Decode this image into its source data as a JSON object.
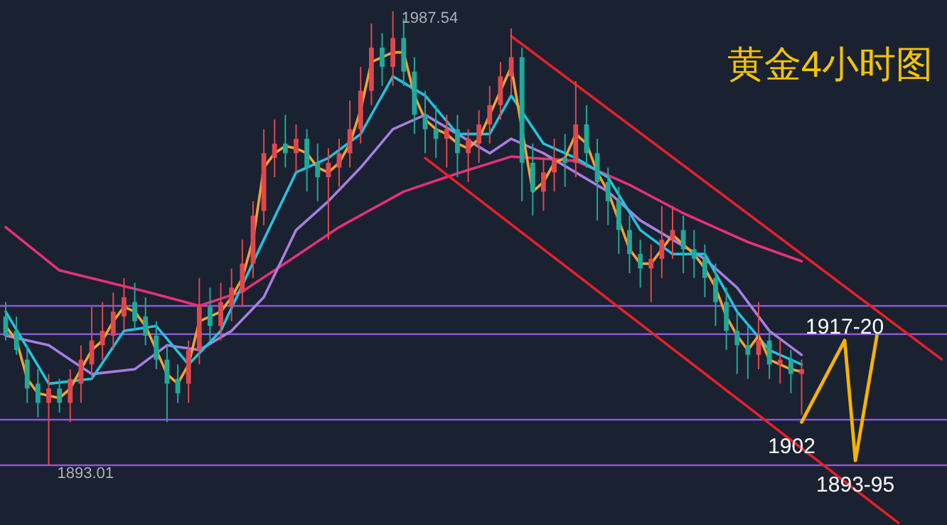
{
  "chart_data": {
    "type": "candlestick",
    "title": "黄金4小时图",
    "tick_labels": false,
    "categories": [
      null,
      null,
      null,
      null,
      null,
      null,
      null,
      null,
      null,
      null,
      null,
      null,
      null,
      null,
      null,
      null,
      null,
      null,
      null,
      null,
      null,
      null,
      null,
      null,
      null,
      null,
      null,
      null,
      null,
      null,
      null,
      null,
      null,
      null,
      null,
      null,
      null,
      null,
      null,
      null,
      null,
      null,
      null,
      null,
      null,
      null,
      null,
      null,
      null,
      null,
      null,
      null,
      null,
      null,
      null,
      null,
      null,
      null,
      null,
      null,
      null,
      null,
      null,
      null,
      null,
      null,
      null,
      null,
      null,
      null,
      null,
      null,
      null,
      null,
      null,
      null,
      null,
      null,
      null,
      null,
      null,
      null,
      null,
      null,
      null,
      null,
      null,
      null
    ],
    "ohlc": [
      [
        1924,
        1927,
        1919,
        1920
      ],
      [
        1921,
        1924,
        1916,
        1917
      ],
      [
        1915,
        1918,
        1906,
        1909
      ],
      [
        1910,
        1913,
        1903,
        1906
      ],
      [
        1906,
        1912,
        1893.01,
        1909
      ],
      [
        1909,
        1911,
        1904,
        1906
      ],
      [
        1906,
        1913,
        1902,
        1911
      ],
      [
        1910,
        1918,
        1906,
        1915
      ],
      [
        1914,
        1926,
        1911,
        1919
      ],
      [
        1918,
        1927,
        1915,
        1921
      ],
      [
        1920,
        1929,
        1917,
        1925
      ],
      [
        1924,
        1932,
        1921,
        1928
      ],
      [
        1927,
        1931,
        1921,
        1923
      ],
      [
        1924,
        1928,
        1918,
        1920
      ],
      [
        1920,
        1923,
        1913,
        1915
      ],
      [
        1915,
        1918,
        1902,
        1910
      ],
      [
        1911,
        1914,
        1906,
        1908
      ],
      [
        1910,
        1919,
        1906,
        1917
      ],
      [
        1917,
        1932,
        1914,
        1926
      ],
      [
        1926,
        1930,
        1919,
        1922
      ],
      [
        1922,
        1931,
        1919,
        1927
      ],
      [
        1926,
        1934,
        1923,
        1930
      ],
      [
        1929,
        1940,
        1926,
        1935
      ],
      [
        1935,
        1948,
        1932,
        1945
      ],
      [
        1946,
        1963,
        1943,
        1958
      ],
      [
        1957,
        1965,
        1953,
        1960
      ],
      [
        1960,
        1966,
        1955,
        1958
      ],
      [
        1958,
        1964,
        1954,
        1961
      ],
      [
        1961,
        1963,
        1950,
        1955
      ],
      [
        1956,
        1960,
        1948,
        1953
      ],
      [
        1953,
        1959,
        1940,
        1956
      ],
      [
        1955,
        1961,
        1951,
        1958
      ],
      [
        1958,
        1969,
        1955,
        1963
      ],
      [
        1963,
        1976,
        1960,
        1971
      ],
      [
        1971,
        1985,
        1968,
        1980
      ],
      [
        1980,
        1983,
        1972,
        1976
      ],
      [
        1976,
        1987.54,
        1972,
        1982
      ],
      [
        1982,
        1986,
        1972,
        1975
      ],
      [
        1975,
        1978,
        1962,
        1966
      ],
      [
        1966,
        1971,
        1958,
        1963
      ],
      [
        1963,
        1968,
        1957,
        1961
      ],
      [
        1961,
        1966,
        1955,
        1963
      ],
      [
        1963,
        1966,
        1953,
        1958
      ],
      [
        1958,
        1963,
        1952,
        1961
      ],
      [
        1960,
        1967,
        1956,
        1964
      ],
      [
        1964,
        1972,
        1960,
        1968
      ],
      [
        1968,
        1977,
        1965,
        1974
      ],
      [
        1974,
        1984,
        1970,
        1978
      ],
      [
        1978,
        1980,
        1948,
        1956
      ],
      [
        1956,
        1960,
        1945,
        1950
      ],
      [
        1950,
        1957,
        1946,
        1954
      ],
      [
        1954,
        1961,
        1950,
        1957
      ],
      [
        1957,
        1962,
        1951,
        1956
      ],
      [
        1956,
        1973,
        1953,
        1964
      ],
      [
        1964,
        1968,
        1955,
        1958
      ],
      [
        1958,
        1961,
        1944,
        1952
      ],
      [
        1952,
        1955,
        1943,
        1948
      ],
      [
        1948,
        1951,
        1937,
        1942
      ],
      [
        1942,
        1945,
        1933,
        1937
      ],
      [
        1937,
        1940,
        1930,
        1934
      ],
      [
        1934,
        1939,
        1927,
        1936
      ],
      [
        1936,
        1947,
        1932,
        1940
      ],
      [
        1940,
        1947,
        1936,
        1942
      ],
      [
        1942,
        1945,
        1933,
        1938
      ],
      [
        1938,
        1942,
        1932,
        1936
      ],
      [
        1936,
        1939,
        1928,
        1932
      ],
      [
        1932,
        1935,
        1922,
        1927
      ],
      [
        1927,
        1930,
        1917,
        1921
      ],
      [
        1921,
        1925,
        1912,
        1918
      ],
      [
        1918,
        1922,
        1911,
        1916
      ],
      [
        1916,
        1927,
        1913,
        1919
      ],
      [
        1919,
        1921,
        1911,
        1914
      ],
      [
        1914,
        1919,
        1910,
        1915
      ],
      [
        1915,
        1917,
        1908,
        1912
      ],
      [
        1912,
        1915,
        1903.5,
        1913
      ],
      null,
      null,
      null,
      null,
      null,
      null,
      null,
      null,
      null,
      null,
      null,
      null,
      null
    ],
    "series": [
      {
        "type": "line",
        "color": "#e8307a",
        "values": [
          1942.6,
          null,
          null,
          null,
          null,
          1933.6,
          null,
          null,
          null,
          null,
          null,
          null,
          null,
          1929.2,
          null,
          null,
          null,
          null,
          1926.2,
          null,
          null,
          null,
          1929.2,
          null,
          null,
          null,
          1935.1,
          null,
          null,
          null,
          null,
          1942.6,
          null,
          null,
          null,
          null,
          null,
          1950,
          null,
          null,
          null,
          null,
          1953.8,
          null,
          null,
          null,
          null,
          1957.3,
          null,
          null,
          null,
          null,
          null,
          1956.4,
          null,
          null,
          null,
          null,
          1951.4,
          null,
          null,
          null,
          null,
          1945.5,
          null,
          null,
          null,
          null,
          null,
          1939.5,
          null,
          null,
          null,
          null,
          1935.5,
          null,
          null,
          null,
          null,
          null,
          null,
          null,
          null,
          null,
          null,
          null,
          null,
          null
        ]
      },
      {
        "type": "line",
        "color": "#a77fe0",
        "values": [
          1920,
          null,
          null,
          null,
          1918,
          null,
          null,
          null,
          1912,
          null,
          null,
          null,
          1913,
          null,
          null,
          1918,
          null,
          null,
          1917,
          null,
          null,
          1921,
          null,
          null,
          1928,
          null,
          null,
          1942,
          null,
          null,
          1948,
          null,
          null,
          1955,
          null,
          null,
          1963,
          null,
          null,
          1966,
          null,
          null,
          1962,
          null,
          null,
          1958,
          null,
          1961,
          null,
          null,
          1958,
          null,
          null,
          1954,
          null,
          null,
          1950,
          null,
          null,
          1944,
          null,
          null,
          1940,
          null,
          null,
          1936,
          null,
          null,
          1930,
          null,
          null,
          1921,
          null,
          null,
          1916,
          null,
          null,
          null,
          null,
          null,
          null,
          null,
          null,
          null,
          null,
          null,
          null,
          null
        ]
      },
      {
        "type": "line",
        "color": "#22c3de",
        "values": [
          1925,
          null,
          null,
          null,
          1910,
          null,
          null,
          null,
          1911,
          null,
          null,
          1921,
          null,
          null,
          1922,
          null,
          null,
          1914,
          null,
          null,
          1921,
          null,
          null,
          null,
          1940,
          null,
          null,
          1954,
          null,
          null,
          1957,
          null,
          null,
          1962,
          null,
          null,
          1974,
          null,
          null,
          1970,
          null,
          null,
          1962,
          null,
          null,
          1962,
          null,
          1970,
          null,
          null,
          1960,
          null,
          null,
          1957,
          null,
          null,
          1953,
          null,
          null,
          1942,
          null,
          null,
          1937,
          null,
          null,
          1937,
          null,
          null,
          1925,
          null,
          null,
          1917,
          null,
          null,
          1914,
          null,
          null,
          null,
          null,
          null,
          null,
          null,
          null,
          null,
          null,
          null,
          null,
          null
        ]
      },
      {
        "type": "line",
        "color": "#f7a133",
        "values": [
          1922,
          1919,
          1911,
          1908,
          1907.5,
          1907,
          1909,
          1913,
          1917,
          1919,
          1923,
          1926,
          1925,
          1922,
          1917,
          1912,
          1910,
          1914,
          1923,
          1924,
          1925,
          1928,
          1932,
          1940,
          1955,
          1958,
          1959.5,
          1959,
          1958,
          1955,
          1954,
          1956,
          1960,
          1967,
          1977,
          1978,
          1979,
          1979,
          1970,
          1965,
          1963,
          1962,
          1960,
          1959,
          1961,
          1966,
          1971,
          1976,
          null,
          1950,
          1952,
          1956,
          1957,
          1962,
          1960,
          1954,
          1950,
          1944,
          1938,
          1935,
          1935,
          1938,
          1941,
          1939,
          1937,
          1934,
          1930,
          1924,
          1920,
          1917,
          1920,
          1915,
          1914,
          1913,
          1912.5,
          null,
          null,
          null,
          null,
          null,
          null,
          null,
          null,
          null,
          null,
          null,
          null,
          null
        ]
      },
      {
        "type": "line",
        "color": "#e8202a",
        "values": [
          null,
          null,
          null,
          null,
          null,
          null,
          null,
          null,
          null,
          null,
          null,
          null,
          null,
          null,
          null,
          null,
          null,
          null,
          null,
          null,
          null,
          null,
          null,
          null,
          null,
          null,
          null,
          null,
          null,
          null,
          null,
          null,
          null,
          null,
          null,
          null,
          null,
          null,
          null,
          null,
          null,
          null,
          null,
          null,
          null,
          null,
          null,
          1982.4,
          null,
          null,
          null,
          null,
          null,
          null,
          null,
          null,
          null,
          null,
          null,
          null,
          null,
          null,
          null,
          null,
          null,
          null,
          null,
          null,
          null,
          null,
          null,
          null,
          null,
          null,
          null,
          null,
          null,
          null,
          null,
          null,
          null,
          null,
          null,
          null,
          null,
          null,
          null,
          1915.1
        ]
      },
      {
        "type": "line",
        "color": "#e8202a",
        "values": [
          null,
          null,
          null,
          null,
          null,
          null,
          null,
          null,
          null,
          null,
          null,
          null,
          null,
          null,
          null,
          null,
          null,
          null,
          null,
          null,
          null,
          null,
          null,
          null,
          null,
          null,
          null,
          null,
          null,
          null,
          null,
          null,
          null,
          null,
          null,
          null,
          null,
          null,
          null,
          1957,
          null,
          null,
          null,
          null,
          null,
          null,
          null,
          null,
          null,
          null,
          null,
          null,
          null,
          null,
          null,
          null,
          null,
          null,
          null,
          null,
          null,
          null,
          null,
          null,
          null,
          null,
          null,
          null,
          null,
          null,
          null,
          null,
          null,
          null,
          null,
          null,
          null,
          null,
          null,
          null,
          null,
          null,
          null,
          1881,
          null,
          null,
          null,
          null
        ]
      },
      {
        "type": "line",
        "color": "#f5b400",
        "values": [
          null,
          null,
          null,
          null,
          null,
          null,
          null,
          null,
          null,
          null,
          null,
          null,
          null,
          null,
          null,
          null,
          null,
          null,
          null,
          null,
          null,
          null,
          null,
          null,
          null,
          null,
          null,
          null,
          null,
          null,
          null,
          null,
          null,
          null,
          null,
          null,
          null,
          null,
          null,
          null,
          null,
          null,
          null,
          null,
          null,
          null,
          null,
          null,
          null,
          null,
          null,
          null,
          null,
          null,
          null,
          null,
          null,
          null,
          null,
          null,
          null,
          null,
          null,
          null,
          null,
          null,
          null,
          null,
          null,
          null,
          null,
          null,
          null,
          null,
          1902,
          null,
          null,
          null,
          1919,
          1894,
          null,
          1920,
          null,
          null,
          null,
          null,
          null,
          null
        ]
      }
    ],
    "ref_lines": [
      {
        "axis": "y",
        "value": 1926.2,
        "color": "#8a5ad6"
      },
      {
        "axis": "y",
        "value": 1920.3,
        "color": "#8a5ad6"
      },
      {
        "axis": "y",
        "value": 1902.5,
        "color": "#8a5ad6"
      },
      {
        "axis": "y",
        "value": 1893.01,
        "color": "#8a5ad6"
      }
    ],
    "annotations": [
      "1987.54",
      {
        "text": "1893.01",
        "y": 1893.01
      },
      {
        "text": "1917-20",
        "y": 1919
      },
      {
        "text": "1902",
        "y": 1902
      },
      {
        "text": "1893-95",
        "y": 1894
      }
    ]
  }
}
